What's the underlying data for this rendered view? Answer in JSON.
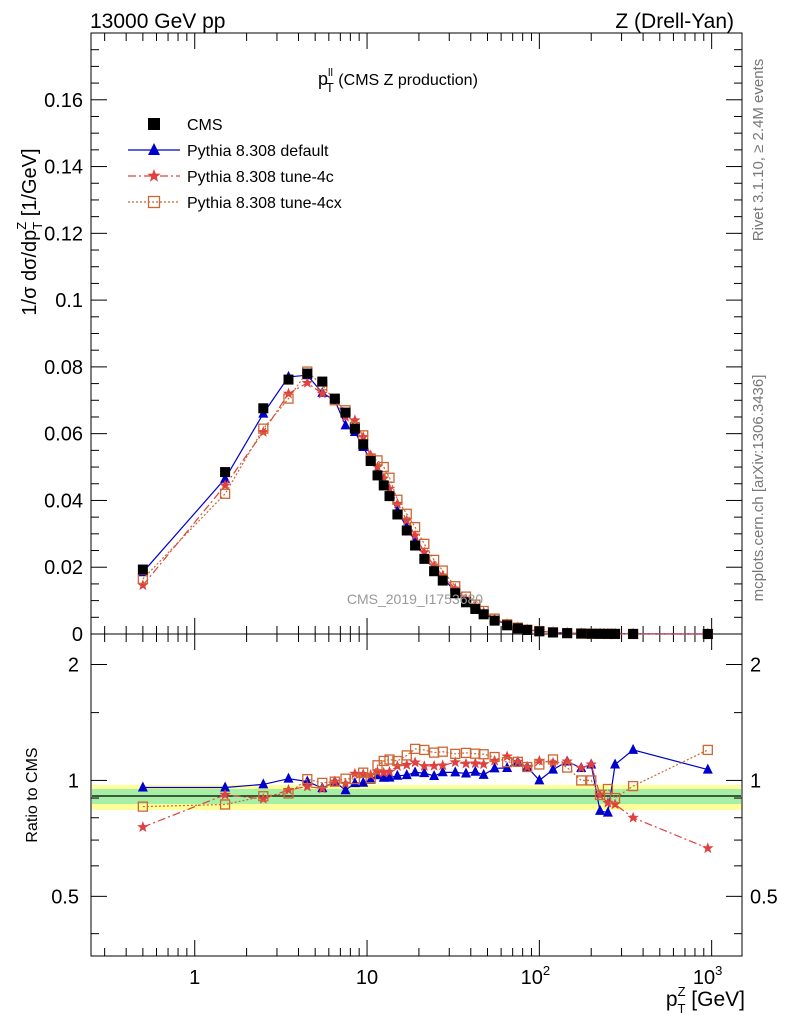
{
  "header": {
    "left": "13000 GeV pp",
    "right": "Z (Drell-Yan)"
  },
  "plot_title": {
    "main": "p",
    "sup": "ll",
    "sub": "T",
    "rest": " (CMS Z production)"
  },
  "side_labels": {
    "rivet": "Rivet 3.1.10, ≥ 2.4M events",
    "mcplots": "mcplots.cern.ch [arXiv:1306.3436]"
  },
  "watermark": "CMS_2019_I1753680",
  "axes": {
    "ylabel_top": "1/σ dσ/dp",
    "ylabel_top_sup": "Z",
    "ylabel_top_sub": "T",
    "ylabel_top_unit": " [1/GeV]",
    "ylabel_bottom": "Ratio to CMS",
    "xlabel_main": "p",
    "xlabel_sup": "Z",
    "xlabel_sub": "T",
    "xlabel_unit": " [GeV]",
    "y_ticks_top": [
      "0",
      "0.02",
      "0.04",
      "0.06",
      "0.08",
      "0.1",
      "0.12",
      "0.14",
      "0.16"
    ],
    "y_ticks_bottom": [
      "0.5",
      "1",
      "2"
    ],
    "x_ticks": [
      {
        "base": "1",
        "exp": ""
      },
      {
        "base": "10",
        "exp": ""
      },
      {
        "base": "10",
        "exp": "2"
      },
      {
        "base": "10",
        "exp": "3"
      }
    ]
  },
  "legend": [
    {
      "label": "CMS",
      "color": "#000000",
      "marker": "square"
    },
    {
      "label": "Pythia 8.308 default",
      "color": "#0000cc",
      "marker": "triangle"
    },
    {
      "label": "Pythia 8.308 tune-4c",
      "color": "#e04040",
      "marker": "star"
    },
    {
      "label": "Pythia 8.308 tune-4cx",
      "color": "#cc6633",
      "marker": "open-square"
    }
  ],
  "chart_data": {
    "type": "scatter",
    "x_scale": "log",
    "xlim": [
      0.25,
      1500
    ],
    "top_panel": {
      "ylim": [
        0,
        0.18
      ],
      "y_scale": "linear"
    },
    "ratio_panel": {
      "ylim": [
        0.35,
        2.4
      ],
      "y_scale": "log",
      "reference": 1
    },
    "x": [
      0.5,
      1.5,
      2.5,
      3.5,
      4.5,
      5.5,
      6.5,
      7.5,
      8.5,
      9.5,
      10.5,
      11.5,
      12.5,
      13.5,
      15,
      17,
      19,
      21.5,
      24.5,
      27.5,
      32.5,
      37.5,
      42.5,
      47.5,
      55,
      65,
      75,
      85,
      100,
      120,
      145,
      175,
      200,
      225,
      250,
      275,
      350,
      950
    ],
    "series": [
      {
        "name": "CMS",
        "color": "#000000",
        "marker": "square",
        "values": [
          0.0193,
          0.0485,
          0.0676,
          0.0762,
          0.078,
          0.0756,
          0.0705,
          0.0663,
          0.0615,
          0.0568,
          0.0518,
          0.0475,
          0.0445,
          0.0413,
          0.0358,
          0.031,
          0.0265,
          0.0225,
          0.0188,
          0.016,
          0.0122,
          0.0095,
          0.0075,
          0.0059,
          0.004,
          0.0026,
          0.0017,
          0.0012,
          0.0008,
          0.00045,
          0.00025,
          0.00013,
          8e-05,
          6e-05,
          4e-05,
          3e-05,
          1.5e-05,
          1.5e-06
        ]
      },
      {
        "name": "Pythia 8.308 default",
        "color": "#0000cc",
        "marker": "triangle",
        "values": [
          0.0185,
          0.0465,
          0.066,
          0.077,
          0.0775,
          0.0722,
          0.07,
          0.0625,
          0.0605,
          0.056,
          0.052,
          0.049,
          0.0452,
          0.042,
          0.0368,
          0.032,
          0.0278,
          0.0235,
          0.0193,
          0.0168,
          0.0128,
          0.0099,
          0.0079,
          0.0061,
          0.0043,
          0.0028,
          0.0019,
          0.0013,
          0.0008,
          0.00048,
          0.00028,
          0.00014,
          8.8e-05,
          5e-05,
          3.3e-05,
          3.3e-05,
          1.8e-05,
          1.6e-06
        ]
      },
      {
        "name": "Pythia 8.308 tune-4c",
        "color": "#e04040",
        "marker": "star",
        "values": [
          0.0146,
          0.0445,
          0.0605,
          0.072,
          0.0752,
          0.072,
          0.07,
          0.065,
          0.064,
          0.059,
          0.0535,
          0.05,
          0.0466,
          0.0435,
          0.039,
          0.034,
          0.0295,
          0.0245,
          0.0205,
          0.0175,
          0.0136,
          0.0105,
          0.0083,
          0.0065,
          0.0045,
          0.003,
          0.0019,
          0.0013,
          0.0009,
          0.0005,
          0.00028,
          0.00014,
          8.8e-05,
          5.5e-05,
          3.5e-05,
          2.6e-05,
          1.2e-05,
          1e-06
        ]
      },
      {
        "name": "Pythia 8.308 tune-4cx",
        "color": "#cc6633",
        "marker": "open-square",
        "values": [
          0.0165,
          0.042,
          0.0615,
          0.0705,
          0.0786,
          0.0745,
          0.07,
          0.067,
          0.062,
          0.0595,
          0.0525,
          0.052,
          0.05,
          0.0468,
          0.0402,
          0.036,
          0.032,
          0.027,
          0.0222,
          0.019,
          0.0143,
          0.0112,
          0.0088,
          0.0069,
          0.0046,
          0.0029,
          0.0019,
          0.0013,
          0.00088,
          0.00051,
          0.00027,
          0.00013,
          8e-05,
          5.5e-05,
          3.8e-05,
          2.7e-05,
          1.45e-05,
          1.8e-06
        ]
      }
    ]
  }
}
